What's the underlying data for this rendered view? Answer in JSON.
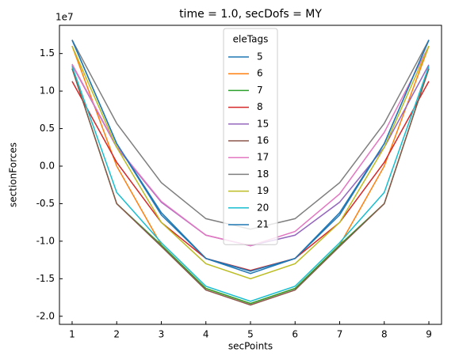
{
  "chart_data": {
    "type": "line",
    "title": "time = 1.0, secDofs = MY",
    "x_label": "secPoints",
    "y_label": "sectionForces",
    "y_offset_label": "1e7",
    "legend_title": "eleTags",
    "legend_position": "upper center",
    "x": [
      1,
      2,
      3,
      4,
      5,
      6,
      7,
      8,
      9
    ],
    "xlim": [
      0.716,
      9.284
    ],
    "xticks": [
      1,
      2,
      3,
      4,
      5,
      6,
      7,
      8,
      9
    ],
    "ylim": [
      -2.108,
      1.876
    ],
    "yticks": [
      {
        "value": -2,
        "label": "-2.0"
      },
      {
        "value": -1.5,
        "label": "-1.5"
      },
      {
        "value": -1,
        "label": "-1.0"
      },
      -0.5,
      {
        "value": 0,
        "label": "0.0"
      },
      0.5,
      {
        "value": 1,
        "label": "1.0"
      },
      1.5
    ],
    "series": [
      {
        "name": "5",
        "color": "#1f77b4",
        "values": [
          1.68,
          0.3,
          -0.65,
          -1.23,
          -1.43,
          -1.23,
          -0.65,
          0.3,
          1.68
        ]
      },
      {
        "name": "6",
        "color": "#ff7f0e",
        "values": [
          1.6,
          0.0,
          -1.05,
          -1.63,
          -1.83,
          -1.63,
          -1.05,
          0.0,
          1.6
        ]
      },
      {
        "name": "7",
        "color": "#2ca02c",
        "values": [
          1.3,
          -0.5,
          -1.05,
          -1.63,
          -1.83,
          -1.63,
          -1.05,
          -0.5,
          1.3
        ]
      },
      {
        "name": "8",
        "color": "#d62728",
        "values": [
          1.13,
          0.05,
          -0.75,
          -1.23,
          -1.39,
          -1.23,
          -0.75,
          0.05,
          1.13
        ]
      },
      {
        "name": "15",
        "color": "#9467bd",
        "values": [
          1.35,
          0.25,
          -0.48,
          -0.92,
          -1.06,
          -0.92,
          -0.48,
          0.25,
          1.35
        ]
      },
      {
        "name": "16",
        "color": "#8c564b",
        "values": [
          1.3,
          -0.5,
          -1.07,
          -1.65,
          -1.85,
          -1.65,
          -1.07,
          -0.5,
          1.3
        ]
      },
      {
        "name": "17",
        "color": "#e377c2",
        "values": [
          1.36,
          0.26,
          -0.47,
          -0.92,
          -1.06,
          -0.87,
          -0.37,
          0.45,
          1.6
        ]
      },
      {
        "name": "18",
        "color": "#7f7f7f",
        "values": [
          1.68,
          0.57,
          -0.22,
          -0.7,
          -0.84,
          -0.7,
          -0.22,
          0.57,
          1.68
        ]
      },
      {
        "name": "19",
        "color": "#bcbd22",
        "values": [
          1.6,
          0.25,
          -0.75,
          -1.3,
          -1.5,
          -1.3,
          -0.75,
          0.25,
          1.6
        ]
      },
      {
        "name": "20",
        "color": "#17becf",
        "values": [
          1.33,
          -0.35,
          -1.02,
          -1.6,
          -1.8,
          -1.6,
          -1.02,
          -0.35,
          1.33
        ]
      },
      {
        "name": "21",
        "color": "#1f77b4",
        "values": [
          1.68,
          0.3,
          -0.62,
          -1.23,
          -1.4,
          -1.23,
          -0.62,
          0.3,
          1.68
        ]
      }
    ]
  }
}
